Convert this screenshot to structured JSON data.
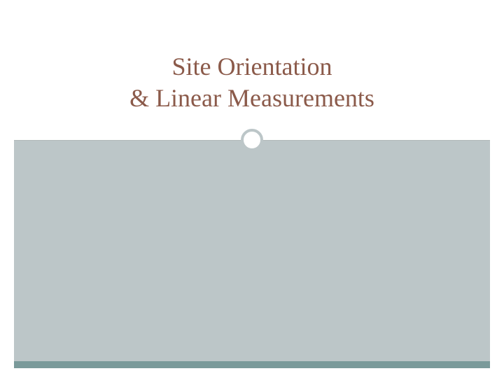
{
  "slide": {
    "title_line1": "Site  Orientation",
    "title_line2": "& Linear Measurements",
    "title_color": "#8b5a4a",
    "title_fontsize": 36,
    "background_top": "#ffffff",
    "background_bottom": "#bcc6c8",
    "circle_border_color": "#bcc6c8",
    "circle_border_width": 4,
    "circle_background": "#ffffff",
    "divider_color": "#b0b8b8",
    "bottom_bar_color": "#7a9a9a"
  }
}
